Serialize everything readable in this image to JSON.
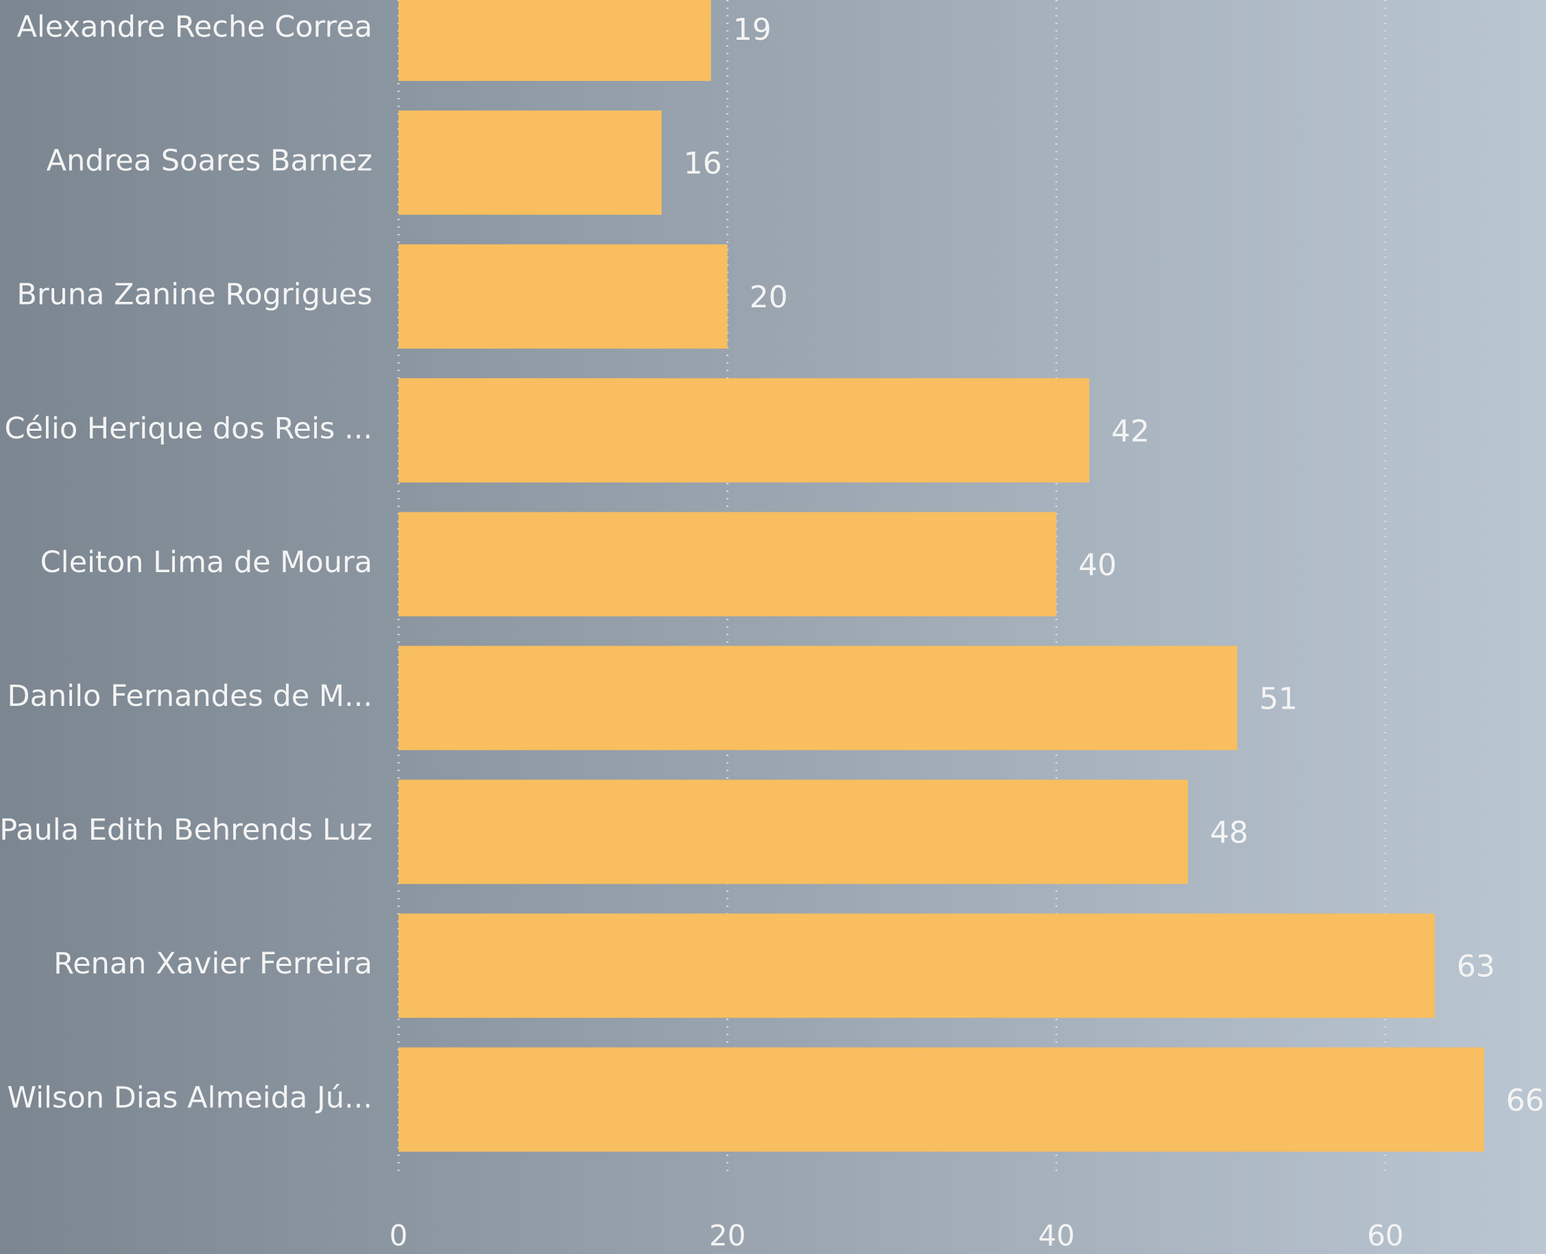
{
  "chart_data": {
    "type": "hbar",
    "categories": [
      "Alexandre Reche Correa",
      "Andrea Soares Barnez",
      "Bruna Zanine Rogrigues",
      "Célio Herique dos Reis ...",
      "Cleiton Lima de Moura",
      "Danilo Fernandes de M...",
      "Paula Edith Behrends Luz",
      "Renan Xavier Ferreira",
      "Wilson Dias Almeida Jú..."
    ],
    "values": [
      19,
      16,
      20,
      42,
      40,
      51,
      48,
      63,
      66
    ],
    "color": "#f8be5f",
    "xlim": [
      0,
      70
    ],
    "xticks": [
      0,
      20,
      40,
      60
    ],
    "grid": true
  }
}
